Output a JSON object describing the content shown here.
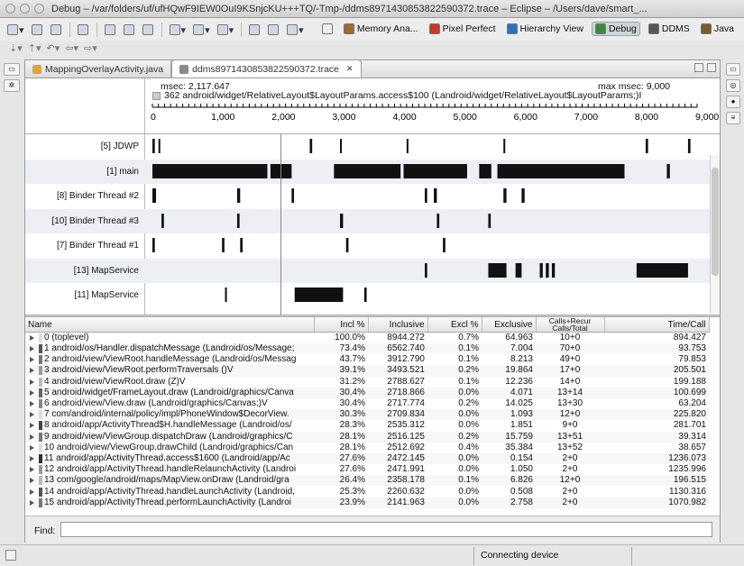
{
  "window": {
    "title": "Debug – /var/folders/uf/ufHQwF9IEW0OuI9KSnjcKU+++TQ/-Tmp-/ddms8971430853822590372.trace – Eclipse – /Users/dave/smart_..."
  },
  "perspectives": [
    {
      "label": "Memory Ana...",
      "icon": "memory-analyzer-icon",
      "color": "#9c6b3a"
    },
    {
      "label": "Pixel Perfect",
      "icon": "pixel-perfect-icon",
      "color": "#c0392b"
    },
    {
      "label": "Hierarchy View",
      "icon": "hierarchy-view-icon",
      "color": "#2e6fbd"
    },
    {
      "label": "Debug",
      "icon": "debug-icon",
      "color": "#3b8a3b",
      "active": true
    },
    {
      "label": "DDMS",
      "icon": "ddms-icon",
      "color": "#555555"
    },
    {
      "label": "Java",
      "icon": "java-icon",
      "color": "#7a5c2e"
    }
  ],
  "tabs": [
    {
      "label": "MappingOverlayActivity.java",
      "icon": "java-file-icon",
      "color": "#d9a441",
      "active": false
    },
    {
      "label": "ddms8971430853822590372.trace",
      "icon": "trace-file-icon",
      "color": "#8a8a8a",
      "active": true,
      "closable": "✕"
    }
  ],
  "timeline": {
    "msec_text": "msec: 2,117.647",
    "max_msec_text": "max msec: 9,000",
    "method_text": "362 android/widget/RelativeLayout$LayoutParams.access$100 (Landroid/widget/RelativeLayout$LayoutParams;)I",
    "axis_max": 9000,
    "ticks": [
      "0",
      "1,000",
      "2,000",
      "3,000",
      "4,000",
      "5,000",
      "6,000",
      "7,000",
      "8,000",
      "9,000"
    ],
    "cursor_msec": 2117.647,
    "threads": [
      {
        "label": "[5] JDWP",
        "segments": [
          [
            0,
            40
          ],
          [
            100,
            130
          ],
          [
            2600,
            2640
          ],
          [
            3100,
            3130
          ],
          [
            4200,
            4230
          ],
          [
            5800,
            5830
          ],
          [
            8150,
            8190
          ],
          [
            8850,
            8890
          ]
        ]
      },
      {
        "label": "[1] main",
        "segments": [
          [
            0,
            1900
          ],
          [
            1950,
            2300
          ],
          [
            3000,
            4100
          ],
          [
            4150,
            5200
          ],
          [
            5400,
            5600
          ],
          [
            5700,
            7800
          ],
          [
            8500,
            8550
          ]
        ]
      },
      {
        "label": "[8] Binder Thread #2",
        "segments": [
          [
            0,
            60
          ],
          [
            1400,
            1450
          ],
          [
            2300,
            2340
          ],
          [
            4500,
            4540
          ],
          [
            4650,
            4700
          ],
          [
            5800,
            5850
          ],
          [
            6100,
            6150
          ]
        ]
      },
      {
        "label": "[10] Binder Thread #3",
        "segments": [
          [
            150,
            190
          ],
          [
            1400,
            1440
          ],
          [
            3100,
            3150
          ],
          [
            4700,
            4740
          ],
          [
            5550,
            5590
          ]
        ]
      },
      {
        "label": "[7] Binder Thread #1",
        "segments": [
          [
            0,
            40
          ],
          [
            1150,
            1190
          ],
          [
            1450,
            1490
          ],
          [
            3200,
            3240
          ],
          [
            4800,
            4840
          ]
        ]
      },
      {
        "label": "[13] MapService",
        "segments": [
          [
            4500,
            4540
          ],
          [
            5550,
            5850
          ],
          [
            6000,
            6100
          ],
          [
            6400,
            6450
          ],
          [
            6500,
            6550
          ],
          [
            6600,
            6650
          ],
          [
            8000,
            8850
          ]
        ]
      },
      {
        "label": "[11] MapService",
        "segments": [
          [
            1200,
            1230
          ],
          [
            2350,
            3150
          ],
          [
            3500,
            3540
          ]
        ]
      }
    ]
  },
  "profile": {
    "columns": [
      "Name",
      "Incl %",
      "Inclusive",
      "Excl %",
      "Exclusive",
      "Calls+Recur Calls/Total",
      "Time/Call"
    ],
    "rows": [
      {
        "name": "0 (toplevel)",
        "color": "#dddddd",
        "incl_pct": "100.0%",
        "inclusive": "8944.272",
        "excl_pct": "0.7%",
        "exclusive": "64.963",
        "calls": "10+0",
        "time_call": "894.427"
      },
      {
        "name": "1 android/os/Handler.dispatchMessage (Landroid/os/Message;",
        "color": "#555555",
        "incl_pct": "73.4%",
        "inclusive": "6562.740",
        "excl_pct": "0.1%",
        "exclusive": "7.004",
        "calls": "70+0",
        "time_call": "93.753"
      },
      {
        "name": "2 android/view/ViewRoot.handleMessage (Landroid/os/Messag",
        "color": "#777777",
        "incl_pct": "43.7%",
        "inclusive": "3912.790",
        "excl_pct": "0.1%",
        "exclusive": "8.213",
        "calls": "49+0",
        "time_call": "79.853"
      },
      {
        "name": "3 android/view/ViewRoot.performTraversals ()V",
        "color": "#999999",
        "incl_pct": "39.1%",
        "inclusive": "3493.521",
        "excl_pct": "0.2%",
        "exclusive": "19.864",
        "calls": "17+0",
        "time_call": "205.501"
      },
      {
        "name": "4 android/view/ViewRoot.draw (Z)V",
        "color": "#bbbbbb",
        "incl_pct": "31.2%",
        "inclusive": "2788.627",
        "excl_pct": "0.1%",
        "exclusive": "12.236",
        "calls": "14+0",
        "time_call": "199.188"
      },
      {
        "name": "5 android/widget/FrameLayout.draw (Landroid/graphics/Canva",
        "color": "#666666",
        "incl_pct": "30.4%",
        "inclusive": "2718.866",
        "excl_pct": "0.0%",
        "exclusive": "4.071",
        "calls": "13+14",
        "time_call": "100.699"
      },
      {
        "name": "6 android/view/View.draw (Landroid/graphics/Canvas;)V",
        "color": "#888888",
        "incl_pct": "30.4%",
        "inclusive": "2717.774",
        "excl_pct": "0.2%",
        "exclusive": "14.025",
        "calls": "13+30",
        "time_call": "63.204"
      },
      {
        "name": "7 com/android/internal/policy/impl/PhoneWindow$DecorView.",
        "color": "#dddddd",
        "incl_pct": "30.3%",
        "inclusive": "2709.834",
        "excl_pct": "0.0%",
        "exclusive": "1.093",
        "calls": "12+0",
        "time_call": "225.820"
      },
      {
        "name": "8 android/app/ActivityThread$H.handleMessage (Landroid/os/",
        "color": "#444444",
        "incl_pct": "28.3%",
        "inclusive": "2535.312",
        "excl_pct": "0.0%",
        "exclusive": "1.851",
        "calls": "9+0",
        "time_call": "281.701"
      },
      {
        "name": "9 android/view/ViewGroup.dispatchDraw (Landroid/graphics/C",
        "color": "#777777",
        "incl_pct": "28.1%",
        "inclusive": "2516.125",
        "excl_pct": "0.2%",
        "exclusive": "15.759",
        "calls": "13+51",
        "time_call": "39.314"
      },
      {
        "name": "10 android/view/ViewGroup.drawChild (Landroid/graphics/Can",
        "color": "#dddddd",
        "incl_pct": "28.1%",
        "inclusive": "2512.692",
        "excl_pct": "0.4%",
        "exclusive": "35.384",
        "calls": "13+52",
        "time_call": "38.657"
      },
      {
        "name": "11 android/app/ActivityThread.access$1600 (Landroid/app/Ac",
        "color": "#333333",
        "incl_pct": "27.6%",
        "inclusive": "2472.145",
        "excl_pct": "0.0%",
        "exclusive": "0.154",
        "calls": "2+0",
        "time_call": "1236.073"
      },
      {
        "name": "12 android/app/ActivityThread.handleRelaunchActivity (Landroi",
        "color": "#999999",
        "incl_pct": "27.6%",
        "inclusive": "2471.991",
        "excl_pct": "0.0%",
        "exclusive": "1.050",
        "calls": "2+0",
        "time_call": "1235.996"
      },
      {
        "name": "13 com/google/android/maps/MapView.onDraw (Landroid/gra",
        "color": "#bbbbbb",
        "incl_pct": "26.4%",
        "inclusive": "2358.178",
        "excl_pct": "0.1%",
        "exclusive": "6.826",
        "calls": "12+0",
        "time_call": "196.515"
      },
      {
        "name": "14 android/app/ActivityThread.handleLaunchActivity (Landroid,",
        "color": "#555555",
        "incl_pct": "25.3%",
        "inclusive": "2260.632",
        "excl_pct": "0.0%",
        "exclusive": "0.508",
        "calls": "2+0",
        "time_call": "1130.316"
      },
      {
        "name": "15 android/app/ActivityThread.performLaunchActivity (Landroi",
        "color": "#777777",
        "incl_pct": "23.9%",
        "inclusive": "2141.963",
        "excl_pct": "0.0%",
        "exclusive": "2.758",
        "calls": "2+0",
        "time_call": "1070.982"
      }
    ]
  },
  "find": {
    "label": "Find:",
    "value": ""
  },
  "status": {
    "text": "Connecting device"
  }
}
